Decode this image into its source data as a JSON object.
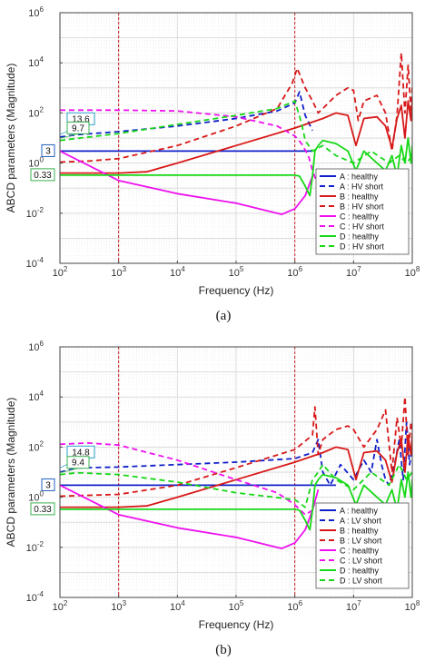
{
  "figure": {
    "captions": [
      "(a)",
      "(b)"
    ]
  },
  "chart_data": [
    {
      "type": "line",
      "panel": "(a)",
      "xlabel": "Frequency (Hz)",
      "ylabel": "ABCD parameters (Magnitude)",
      "xscale": "log",
      "yscale": "log",
      "xlim": [
        100,
        100000000
      ],
      "ylim": [
        0.0001,
        1000000
      ],
      "x_ticks": [
        "10^2",
        "10^3",
        "10^4",
        "10^5",
        "10^6",
        "10^7",
        "10^8"
      ],
      "y_ticks": [
        "10^-4",
        "10^-2",
        "10^0",
        "10^2",
        "10^4",
        "10^6"
      ],
      "grid": true,
      "legend_position": "bottom-right",
      "vlines": [
        1000,
        1000000
      ],
      "annotations": [
        {
          "text": "13.6",
          "y": 13.6
        },
        {
          "text": "9.7",
          "y": 9.7
        },
        {
          "text": "3",
          "y": 3
        },
        {
          "text": "0.33",
          "y": 0.33
        }
      ],
      "series": [
        {
          "name": "A : healthy",
          "color": "#1020c8",
          "style": "solid",
          "x": [
            100,
            1000,
            10000,
            100000,
            1000000,
            2000000
          ],
          "y": [
            3,
            3,
            3,
            3,
            3,
            3
          ]
        },
        {
          "name": "A : HV short",
          "color": "#1020c8",
          "style": "dashed",
          "x": [
            100,
            200,
            1000,
            10000,
            100000,
            500000,
            1000000,
            1200000,
            1500000,
            2000000
          ],
          "y": [
            11,
            13.6,
            18,
            30,
            60,
            120,
            250,
            700,
            80,
            20
          ]
        },
        {
          "name": "B : healthy",
          "color": "#d81818",
          "style": "solid",
          "x": [
            100,
            1000,
            3000,
            10000,
            100000,
            1000000,
            3000000,
            5000000,
            8000000,
            11000000,
            15000000,
            25000000,
            35000000,
            45000000,
            55000000,
            65000000,
            75000000,
            85000000,
            95000000,
            100000000
          ],
          "y": [
            0.4,
            0.4,
            0.45,
            1,
            5,
            25,
            60,
            100,
            80,
            5,
            60,
            70,
            30,
            4,
            60,
            200,
            10,
            300,
            50,
            300
          ]
        },
        {
          "name": "B : HV short",
          "color": "#d81818",
          "style": "dashed",
          "x": [
            100,
            300,
            1000,
            10000,
            100000,
            500000,
            900000,
            1100000,
            1500000,
            2000000,
            2500000,
            3000000,
            5000000,
            8000000,
            10000000,
            12000000,
            15000000,
            25000000,
            35000000,
            45000000,
            55000000,
            65000000,
            75000000,
            85000000,
            95000000,
            100000000
          ],
          "y": [
            1.1,
            1.2,
            1.5,
            5,
            30,
            150,
            1500,
            6000,
            1000,
            300,
            100,
            150,
            500,
            1000,
            800,
            50,
            300,
            500,
            100,
            3,
            80,
            25000,
            100,
            8000,
            100,
            1000
          ]
        },
        {
          "name": "C : healthy",
          "color": "#ee10ee",
          "style": "solid",
          "x": [
            100,
            1000,
            10000,
            100000,
            600000,
            1000000,
            1500000,
            2000000
          ],
          "y": [
            3,
            0.2,
            0.06,
            0.025,
            0.009,
            0.015,
            0.05,
            0.3
          ]
        },
        {
          "name": "C : HV short",
          "color": "#ee10ee",
          "style": "dashed",
          "x": [
            100,
            1000,
            10000,
            100000,
            500000,
            1000000,
            1300000,
            1700000,
            2000000,
            2300000
          ],
          "y": [
            130,
            130,
            120,
            70,
            30,
            12,
            6,
            2,
            0.5,
            0.2
          ]
        },
        {
          "name": "D : healthy",
          "color": "#18d818",
          "style": "solid",
          "x": [
            100,
            1000,
            10000,
            100000,
            1000000,
            1200000,
            1500000,
            1800000,
            2000000,
            2200000,
            2500000,
            3000000,
            5000000,
            8000000,
            11000000,
            15000000,
            25000000,
            35000000,
            45000000,
            55000000,
            65000000,
            75000000,
            85000000,
            95000000,
            100000000
          ],
          "y": [
            0.33,
            0.33,
            0.33,
            0.33,
            0.33,
            0.3,
            0.12,
            0.05,
            0.3,
            3,
            5,
            8,
            6,
            3,
            0.5,
            3,
            1,
            0.5,
            2,
            0.3,
            5,
            1,
            10,
            1,
            5
          ]
        },
        {
          "name": "D : HV short",
          "color": "#18d818",
          "style": "dashed",
          "x": [
            100,
            200,
            1000,
            10000,
            100000,
            500000,
            1000000,
            1300000,
            1500000,
            2000000,
            2500000,
            3000000,
            5000000,
            10000000,
            20000000,
            40000000,
            60000000,
            80000000,
            100000000
          ],
          "y": [
            8,
            9.7,
            15,
            35,
            80,
            150,
            300,
            40,
            8,
            3,
            4,
            5,
            2,
            1,
            3,
            1,
            2,
            1,
            2
          ]
        }
      ]
    },
    {
      "type": "line",
      "panel": "(b)",
      "xlabel": "Frequency (Hz)",
      "ylabel": "ABCD parameters (Magnitude)",
      "xscale": "log",
      "yscale": "log",
      "xlim": [
        100,
        100000000
      ],
      "ylim": [
        0.0001,
        1000000
      ],
      "x_ticks": [
        "10^2",
        "10^3",
        "10^4",
        "10^5",
        "10^6",
        "10^7",
        "10^8"
      ],
      "y_ticks": [
        "10^-4",
        "10^-2",
        "10^0",
        "10^2",
        "10^4",
        "10^6"
      ],
      "grid": true,
      "legend_position": "bottom-right",
      "vlines": [
        1000,
        1000000
      ],
      "annotations": [
        {
          "text": "14.8",
          "y": 14.8
        },
        {
          "text": "9.4",
          "y": 9.4
        },
        {
          "text": "3",
          "y": 3
        },
        {
          "text": "0.33",
          "y": 0.33
        }
      ],
      "series": [
        {
          "name": "A : healthy",
          "color": "#1020c8",
          "style": "solid",
          "x": [
            100,
            1000,
            10000,
            100000,
            1000000,
            2000000,
            5000000
          ],
          "y": [
            3,
            3,
            3,
            3,
            3,
            3,
            3
          ]
        },
        {
          "name": "A : LV short",
          "color": "#1020c8",
          "style": "dashed",
          "x": [
            100,
            200,
            1000,
            10000,
            100000,
            1000000,
            2000000,
            2500000,
            3000000,
            4000000,
            6000000,
            10000000,
            15000000,
            20000000,
            25000000,
            30000000,
            35000000,
            40000000,
            50000000,
            60000000,
            70000000,
            80000000,
            90000000,
            100000000
          ],
          "y": [
            10,
            14.8,
            16,
            20,
            25,
            35,
            60,
            200,
            10,
            3,
            20,
            5,
            30,
            10,
            200,
            20,
            5,
            3,
            20,
            200,
            5,
            1000,
            20,
            100
          ]
        },
        {
          "name": "B : healthy",
          "color": "#d81818",
          "style": "solid",
          "x": [
            100,
            1000,
            3000,
            10000,
            100000,
            1000000,
            3000000,
            5000000,
            8000000,
            11000000,
            15000000,
            25000000,
            35000000,
            45000000,
            55000000,
            65000000,
            75000000,
            85000000,
            95000000,
            100000000
          ],
          "y": [
            0.4,
            0.4,
            0.45,
            1,
            5,
            25,
            60,
            100,
            80,
            5,
            60,
            70,
            30,
            4,
            60,
            200,
            10,
            300,
            50,
            300
          ]
        },
        {
          "name": "B : LV short",
          "color": "#d81818",
          "style": "dashed",
          "x": [
            100,
            1000,
            10000,
            100000,
            1000000,
            2000000,
            2200000,
            2500000,
            3000000,
            5000000,
            8000000,
            10000000,
            15000000,
            25000000,
            35000000,
            45000000,
            55000000,
            65000000,
            75000000,
            85000000,
            95000000,
            100000000
          ],
          "y": [
            1.1,
            1.3,
            3,
            15,
            80,
            300,
            4000,
            50,
            200,
            500,
            700,
            500,
            100,
            500,
            3000,
            10,
            1500,
            100,
            10000,
            50,
            1000,
            300
          ]
        },
        {
          "name": "C : healthy",
          "color": "#ee10ee",
          "style": "solid",
          "x": [
            100,
            1000,
            10000,
            100000,
            600000,
            1000000,
            1500000,
            2000000,
            2500000
          ],
          "y": [
            3,
            0.2,
            0.06,
            0.025,
            0.009,
            0.015,
            0.05,
            0.3,
            2
          ]
        },
        {
          "name": "C : LV short",
          "color": "#ee10ee",
          "style": "dashed",
          "x": [
            100,
            300,
            1000,
            10000,
            100000,
            500000,
            1000000,
            1500000,
            2000000,
            2300000
          ],
          "y": [
            130,
            145,
            120,
            30,
            5,
            1.5,
            0.5,
            0.2,
            0.3,
            1
          ]
        },
        {
          "name": "D : healthy",
          "color": "#18d818",
          "style": "solid",
          "x": [
            100,
            1000,
            10000,
            100000,
            1000000,
            1200000,
            1500000,
            1800000,
            2000000,
            2200000,
            2500000,
            3000000,
            5000000,
            8000000,
            11000000,
            15000000,
            25000000,
            35000000,
            45000000,
            55000000,
            65000000,
            75000000,
            85000000,
            95000000,
            100000000
          ],
          "y": [
            0.33,
            0.33,
            0.33,
            0.33,
            0.33,
            0.3,
            0.12,
            0.05,
            0.3,
            3,
            5,
            8,
            6,
            3,
            0.5,
            3,
            1,
            0.5,
            2,
            0.3,
            5,
            1,
            10,
            1,
            5
          ]
        },
        {
          "name": "D : LV short",
          "color": "#18d818",
          "style": "dashed",
          "x": [
            100,
            200,
            1000,
            10000,
            100000,
            1000000,
            1500000,
            2000000,
            2500000,
            3000000,
            5000000,
            10000000,
            20000000,
            40000000,
            60000000,
            80000000,
            100000000
          ],
          "y": [
            8,
            9.4,
            8,
            4,
            1.5,
            0.8,
            0.4,
            5,
            10,
            20,
            5,
            2,
            10,
            3,
            20,
            5,
            10
          ]
        }
      ]
    }
  ]
}
